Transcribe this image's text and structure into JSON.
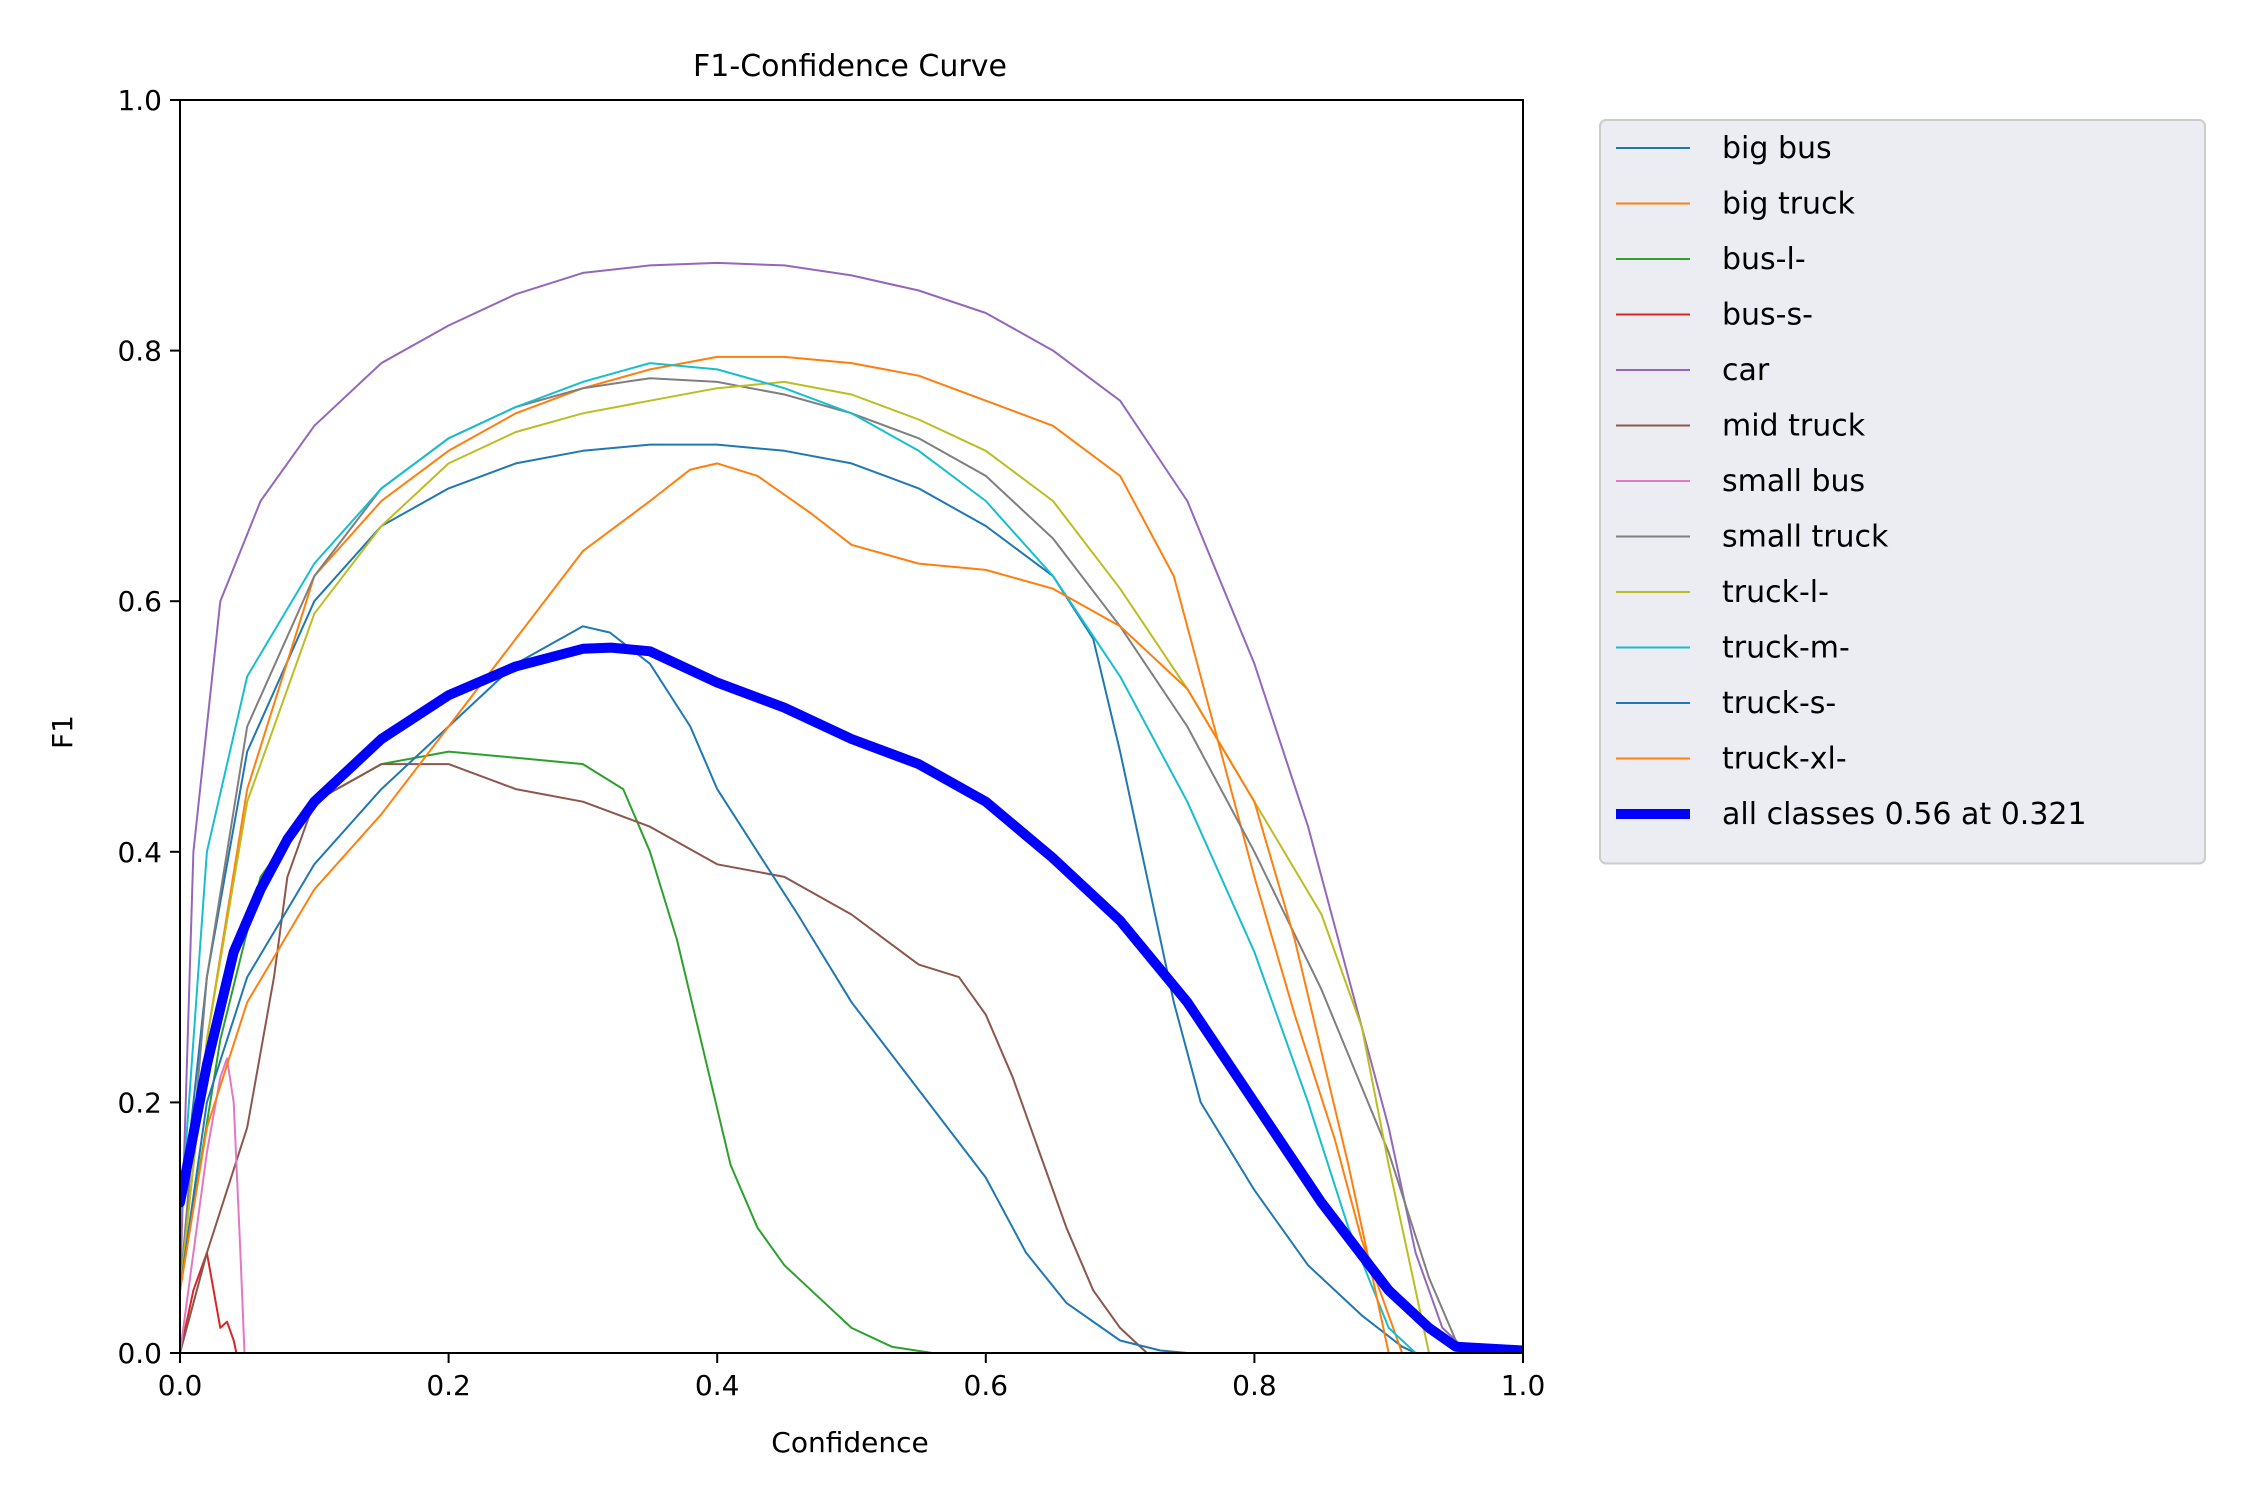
{
  "chart_data": {
    "type": "line",
    "title": "F1-Confidence Curve",
    "xlabel": "Confidence",
    "ylabel": "F1",
    "xlim": [
      0,
      1
    ],
    "ylim": [
      0,
      1
    ],
    "xticks": [
      "0.0",
      "0.2",
      "0.4",
      "0.6",
      "0.8",
      "1.0"
    ],
    "yticks": [
      "0.0",
      "0.2",
      "0.4",
      "0.6",
      "0.8",
      "1.0"
    ],
    "grid": false,
    "legend_position": "outside-right-top",
    "series": [
      {
        "name": "big bus",
        "color": "#1f77b4",
        "width": 1,
        "points": [
          [
            0,
            0.1
          ],
          [
            0.02,
            0.3
          ],
          [
            0.05,
            0.48
          ],
          [
            0.1,
            0.6
          ],
          [
            0.15,
            0.66
          ],
          [
            0.2,
            0.69
          ],
          [
            0.25,
            0.71
          ],
          [
            0.3,
            0.72
          ],
          [
            0.35,
            0.725
          ],
          [
            0.4,
            0.725
          ],
          [
            0.45,
            0.72
          ],
          [
            0.5,
            0.71
          ],
          [
            0.55,
            0.69
          ],
          [
            0.6,
            0.66
          ],
          [
            0.65,
            0.62
          ],
          [
            0.68,
            0.57
          ],
          [
            0.7,
            0.48
          ],
          [
            0.72,
            0.38
          ],
          [
            0.74,
            0.28
          ],
          [
            0.76,
            0.2
          ],
          [
            0.8,
            0.13
          ],
          [
            0.84,
            0.07
          ],
          [
            0.88,
            0.03
          ],
          [
            0.91,
            0.005
          ],
          [
            0.92,
            0
          ]
        ]
      },
      {
        "name": "big truck",
        "color": "#ff7f0e",
        "width": 1,
        "points": [
          [
            0,
            0.05
          ],
          [
            0.02,
            0.25
          ],
          [
            0.05,
            0.45
          ],
          [
            0.1,
            0.62
          ],
          [
            0.15,
            0.68
          ],
          [
            0.2,
            0.72
          ],
          [
            0.25,
            0.75
          ],
          [
            0.3,
            0.77
          ],
          [
            0.35,
            0.785
          ],
          [
            0.4,
            0.795
          ],
          [
            0.45,
            0.795
          ],
          [
            0.5,
            0.79
          ],
          [
            0.55,
            0.78
          ],
          [
            0.6,
            0.76
          ],
          [
            0.65,
            0.74
          ],
          [
            0.7,
            0.7
          ],
          [
            0.74,
            0.62
          ],
          [
            0.77,
            0.5
          ],
          [
            0.8,
            0.38
          ],
          [
            0.83,
            0.27
          ],
          [
            0.86,
            0.17
          ],
          [
            0.88,
            0.09
          ],
          [
            0.9,
            0.03
          ],
          [
            0.91,
            0
          ]
        ]
      },
      {
        "name": "bus-l-",
        "color": "#2ca02c",
        "width": 1,
        "points": [
          [
            0,
            0.05
          ],
          [
            0.03,
            0.25
          ],
          [
            0.06,
            0.38
          ],
          [
            0.1,
            0.44
          ],
          [
            0.15,
            0.47
          ],
          [
            0.2,
            0.48
          ],
          [
            0.25,
            0.475
          ],
          [
            0.3,
            0.47
          ],
          [
            0.33,
            0.45
          ],
          [
            0.35,
            0.4
          ],
          [
            0.37,
            0.33
          ],
          [
            0.39,
            0.24
          ],
          [
            0.41,
            0.15
          ],
          [
            0.43,
            0.1
          ],
          [
            0.45,
            0.07
          ],
          [
            0.47,
            0.05
          ],
          [
            0.5,
            0.02
          ],
          [
            0.53,
            0.005
          ],
          [
            0.56,
            0
          ]
        ]
      },
      {
        "name": "bus-s-",
        "color": "#d62728",
        "width": 1,
        "points": [
          [
            0,
            0
          ],
          [
            0.01,
            0.05
          ],
          [
            0.02,
            0.08
          ],
          [
            0.025,
            0.05
          ],
          [
            0.03,
            0.02
          ],
          [
            0.035,
            0.025
          ],
          [
            0.04,
            0.01
          ],
          [
            0.042,
            0
          ]
        ]
      },
      {
        "name": "car",
        "color": "#9467bd",
        "width": 1,
        "points": [
          [
            0,
            0.05
          ],
          [
            0.01,
            0.4
          ],
          [
            0.03,
            0.6
          ],
          [
            0.06,
            0.68
          ],
          [
            0.1,
            0.74
          ],
          [
            0.15,
            0.79
          ],
          [
            0.2,
            0.82
          ],
          [
            0.25,
            0.845
          ],
          [
            0.3,
            0.862
          ],
          [
            0.35,
            0.868
          ],
          [
            0.4,
            0.87
          ],
          [
            0.45,
            0.868
          ],
          [
            0.5,
            0.86
          ],
          [
            0.55,
            0.848
          ],
          [
            0.6,
            0.83
          ],
          [
            0.65,
            0.8
          ],
          [
            0.7,
            0.76
          ],
          [
            0.75,
            0.68
          ],
          [
            0.8,
            0.55
          ],
          [
            0.84,
            0.42
          ],
          [
            0.87,
            0.3
          ],
          [
            0.9,
            0.18
          ],
          [
            0.92,
            0.08
          ],
          [
            0.94,
            0.02
          ],
          [
            0.96,
            0
          ]
        ]
      },
      {
        "name": "mid truck",
        "color": "#8c564b",
        "width": 1,
        "points": [
          [
            0,
            0
          ],
          [
            0.02,
            0.08
          ],
          [
            0.05,
            0.18
          ],
          [
            0.07,
            0.3
          ],
          [
            0.08,
            0.38
          ],
          [
            0.1,
            0.44
          ],
          [
            0.15,
            0.47
          ],
          [
            0.2,
            0.47
          ],
          [
            0.25,
            0.45
          ],
          [
            0.3,
            0.44
          ],
          [
            0.35,
            0.42
          ],
          [
            0.4,
            0.39
          ],
          [
            0.45,
            0.38
          ],
          [
            0.5,
            0.35
          ],
          [
            0.55,
            0.31
          ],
          [
            0.58,
            0.3
          ],
          [
            0.6,
            0.27
          ],
          [
            0.62,
            0.22
          ],
          [
            0.64,
            0.16
          ],
          [
            0.66,
            0.1
          ],
          [
            0.68,
            0.05
          ],
          [
            0.7,
            0.02
          ],
          [
            0.72,
            0
          ]
        ]
      },
      {
        "name": "small bus",
        "color": "#e377c2",
        "width": 1,
        "points": [
          [
            0,
            0
          ],
          [
            0.01,
            0.08
          ],
          [
            0.02,
            0.16
          ],
          [
            0.03,
            0.22
          ],
          [
            0.035,
            0.235
          ],
          [
            0.04,
            0.2
          ],
          [
            0.045,
            0.08
          ],
          [
            0.048,
            0
          ]
        ]
      },
      {
        "name": "small truck",
        "color": "#7f7f7f",
        "width": 1,
        "points": [
          [
            0,
            0.05
          ],
          [
            0.02,
            0.3
          ],
          [
            0.05,
            0.5
          ],
          [
            0.1,
            0.62
          ],
          [
            0.15,
            0.69
          ],
          [
            0.2,
            0.73
          ],
          [
            0.25,
            0.755
          ],
          [
            0.3,
            0.77
          ],
          [
            0.35,
            0.778
          ],
          [
            0.4,
            0.775
          ],
          [
            0.45,
            0.765
          ],
          [
            0.5,
            0.75
          ],
          [
            0.55,
            0.73
          ],
          [
            0.6,
            0.7
          ],
          [
            0.65,
            0.65
          ],
          [
            0.7,
            0.58
          ],
          [
            0.75,
            0.5
          ],
          [
            0.8,
            0.4
          ],
          [
            0.85,
            0.29
          ],
          [
            0.9,
            0.16
          ],
          [
            0.93,
            0.06
          ],
          [
            0.95,
            0.01
          ],
          [
            0.96,
            0
          ]
        ]
      },
      {
        "name": "truck-l-",
        "color": "#bcbd22",
        "width": 1,
        "points": [
          [
            0,
            0.05
          ],
          [
            0.02,
            0.25
          ],
          [
            0.05,
            0.44
          ],
          [
            0.1,
            0.59
          ],
          [
            0.15,
            0.66
          ],
          [
            0.2,
            0.71
          ],
          [
            0.25,
            0.735
          ],
          [
            0.3,
            0.75
          ],
          [
            0.35,
            0.76
          ],
          [
            0.4,
            0.77
          ],
          [
            0.45,
            0.775
          ],
          [
            0.5,
            0.765
          ],
          [
            0.55,
            0.745
          ],
          [
            0.6,
            0.72
          ],
          [
            0.65,
            0.68
          ],
          [
            0.7,
            0.61
          ],
          [
            0.75,
            0.53
          ],
          [
            0.8,
            0.44
          ],
          [
            0.85,
            0.35
          ],
          [
            0.88,
            0.26
          ],
          [
            0.9,
            0.15
          ],
          [
            0.92,
            0.05
          ],
          [
            0.93,
            0
          ]
        ]
      },
      {
        "name": "truck-m-",
        "color": "#17becf",
        "width": 1,
        "points": [
          [
            0,
            0.1
          ],
          [
            0.02,
            0.4
          ],
          [
            0.05,
            0.54
          ],
          [
            0.1,
            0.63
          ],
          [
            0.15,
            0.69
          ],
          [
            0.2,
            0.73
          ],
          [
            0.25,
            0.755
          ],
          [
            0.3,
            0.775
          ],
          [
            0.35,
            0.79
          ],
          [
            0.4,
            0.785
          ],
          [
            0.45,
            0.77
          ],
          [
            0.5,
            0.75
          ],
          [
            0.55,
            0.72
          ],
          [
            0.6,
            0.68
          ],
          [
            0.65,
            0.62
          ],
          [
            0.7,
            0.54
          ],
          [
            0.75,
            0.44
          ],
          [
            0.8,
            0.32
          ],
          [
            0.84,
            0.2
          ],
          [
            0.87,
            0.1
          ],
          [
            0.9,
            0.02
          ],
          [
            0.92,
            0
          ]
        ]
      },
      {
        "name": "truck-s-",
        "color": "#1f77b4",
        "width": 1,
        "points": [
          [
            0,
            0.05
          ],
          [
            0.02,
            0.2
          ],
          [
            0.05,
            0.3
          ],
          [
            0.1,
            0.39
          ],
          [
            0.15,
            0.45
          ],
          [
            0.2,
            0.5
          ],
          [
            0.25,
            0.55
          ],
          [
            0.3,
            0.58
          ],
          [
            0.32,
            0.575
          ],
          [
            0.35,
            0.55
          ],
          [
            0.38,
            0.5
          ],
          [
            0.4,
            0.45
          ],
          [
            0.43,
            0.4
          ],
          [
            0.46,
            0.35
          ],
          [
            0.5,
            0.28
          ],
          [
            0.55,
            0.21
          ],
          [
            0.6,
            0.14
          ],
          [
            0.63,
            0.08
          ],
          [
            0.66,
            0.04
          ],
          [
            0.7,
            0.01
          ],
          [
            0.73,
            0.002
          ],
          [
            0.75,
            0
          ]
        ]
      },
      {
        "name": "truck-xl-",
        "color": "#ff7f0e",
        "width": 1,
        "points": [
          [
            0,
            0.05
          ],
          [
            0.02,
            0.18
          ],
          [
            0.05,
            0.28
          ],
          [
            0.1,
            0.37
          ],
          [
            0.15,
            0.43
          ],
          [
            0.2,
            0.5
          ],
          [
            0.25,
            0.57
          ],
          [
            0.3,
            0.64
          ],
          [
            0.35,
            0.68
          ],
          [
            0.38,
            0.705
          ],
          [
            0.4,
            0.71
          ],
          [
            0.43,
            0.7
          ],
          [
            0.47,
            0.67
          ],
          [
            0.5,
            0.645
          ],
          [
            0.55,
            0.63
          ],
          [
            0.6,
            0.625
          ],
          [
            0.65,
            0.61
          ],
          [
            0.7,
            0.58
          ],
          [
            0.75,
            0.53
          ],
          [
            0.8,
            0.44
          ],
          [
            0.83,
            0.33
          ],
          [
            0.85,
            0.24
          ],
          [
            0.87,
            0.15
          ],
          [
            0.89,
            0.05
          ],
          [
            0.9,
            0
          ]
        ]
      },
      {
        "name": "all classes 0.56 at 0.321",
        "color": "#0000ff",
        "width": 5,
        "points": [
          [
            0,
            0.12
          ],
          [
            0.02,
            0.23
          ],
          [
            0.04,
            0.32
          ],
          [
            0.06,
            0.37
          ],
          [
            0.08,
            0.41
          ],
          [
            0.1,
            0.44
          ],
          [
            0.15,
            0.49
          ],
          [
            0.2,
            0.525
          ],
          [
            0.25,
            0.548
          ],
          [
            0.3,
            0.562
          ],
          [
            0.321,
            0.563
          ],
          [
            0.35,
            0.56
          ],
          [
            0.4,
            0.535
          ],
          [
            0.45,
            0.515
          ],
          [
            0.5,
            0.49
          ],
          [
            0.55,
            0.47
          ],
          [
            0.6,
            0.44
          ],
          [
            0.65,
            0.395
          ],
          [
            0.7,
            0.345
          ],
          [
            0.75,
            0.28
          ],
          [
            0.8,
            0.2
          ],
          [
            0.85,
            0.12
          ],
          [
            0.9,
            0.05
          ],
          [
            0.93,
            0.02
          ],
          [
            0.95,
            0.005
          ],
          [
            1.0,
            0.002
          ]
        ]
      }
    ]
  }
}
